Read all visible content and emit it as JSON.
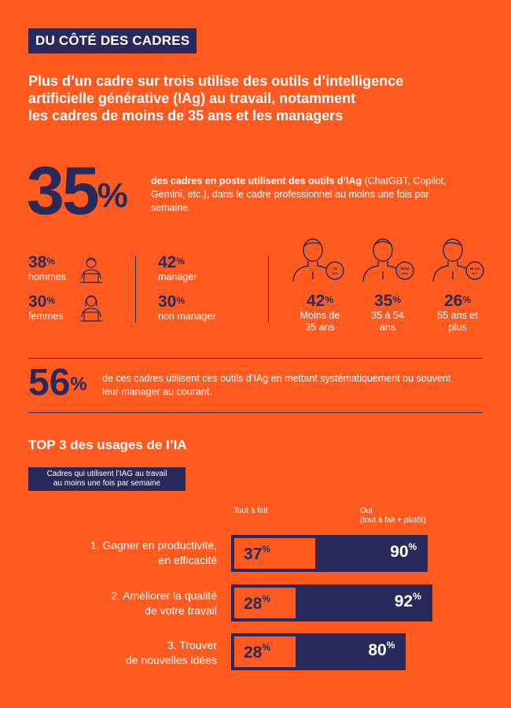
{
  "header": {
    "tag": "DU CÔTÉ DES CADRES",
    "headline_lines": [
      "Plus d’un cadre sur trois utilise des outils d’intelligence",
      "artificielle générative (IAg) au travail, notamment",
      "les cadres de moins de 35 ans et les managers"
    ]
  },
  "intro": {
    "value": "35",
    "unit": "%",
    "text_bold": "des cadres en poste utilisent des outils d’IAg",
    "text_rest": " (ChatGBT, Copilot, Gemini, etc.), dans le cadre professionnel au moins une fois par semaine."
  },
  "gender": [
    {
      "value": "38",
      "unit": "%",
      "label": "hommes",
      "icon": "man-at-laptop-icon"
    },
    {
      "value": "30",
      "unit": "%",
      "label": "femmes",
      "icon": "woman-at-laptop-icon"
    }
  ],
  "role": [
    {
      "value": "42",
      "unit": "%",
      "label": "manager"
    },
    {
      "value": "30",
      "unit": "%",
      "label": "non manager"
    }
  ],
  "age": [
    {
      "value": "42",
      "unit": "%",
      "label_lines": [
        "Moins de",
        "35 ans"
      ],
      "badge": "-35 ans"
    },
    {
      "value": "35",
      "unit": "%",
      "label_lines": [
        "35 à 54",
        "ans"
      ],
      "badge": "35/54 ans"
    },
    {
      "value": "26",
      "unit": "%",
      "label_lines": [
        "55 ans et",
        "plus"
      ],
      "badge": "55 ans et +"
    }
  ],
  "manager_info": {
    "value": "56",
    "unit": "%",
    "text": "de ces cadres utilisent ces outils d’IAg en mettant systématiquement ou souvent leur manager au courant."
  },
  "usages": {
    "title": "TOP 3 des usages de l’IA",
    "subtitle_lines": [
      "Cadres qui utilisent l’IAG au travail",
      "au moins une fois par semaine"
    ],
    "col_tout": "Tout à fait",
    "col_oui_lines": [
      "Oui",
      "(tout à fait + plutôt)"
    ],
    "rows": [
      {
        "label_lines": [
          "1. Gagner en productivité,",
          "en efficacité"
        ],
        "tout_a_fait": 37,
        "oui": 90
      },
      {
        "label_lines": [
          "2. Améliorer la qualité",
          "de votre travail"
        ],
        "tout_a_fait": 28,
        "oui": 92
      },
      {
        "label_lines": [
          "3. Trouver",
          "de nouvelles idées"
        ],
        "tout_a_fait": 28,
        "oui": 80
      }
    ],
    "unit": "%"
  },
  "colors": {
    "background": "#FF5A1F",
    "navy": "#272A5A",
    "white": "#FFFFFF"
  }
}
